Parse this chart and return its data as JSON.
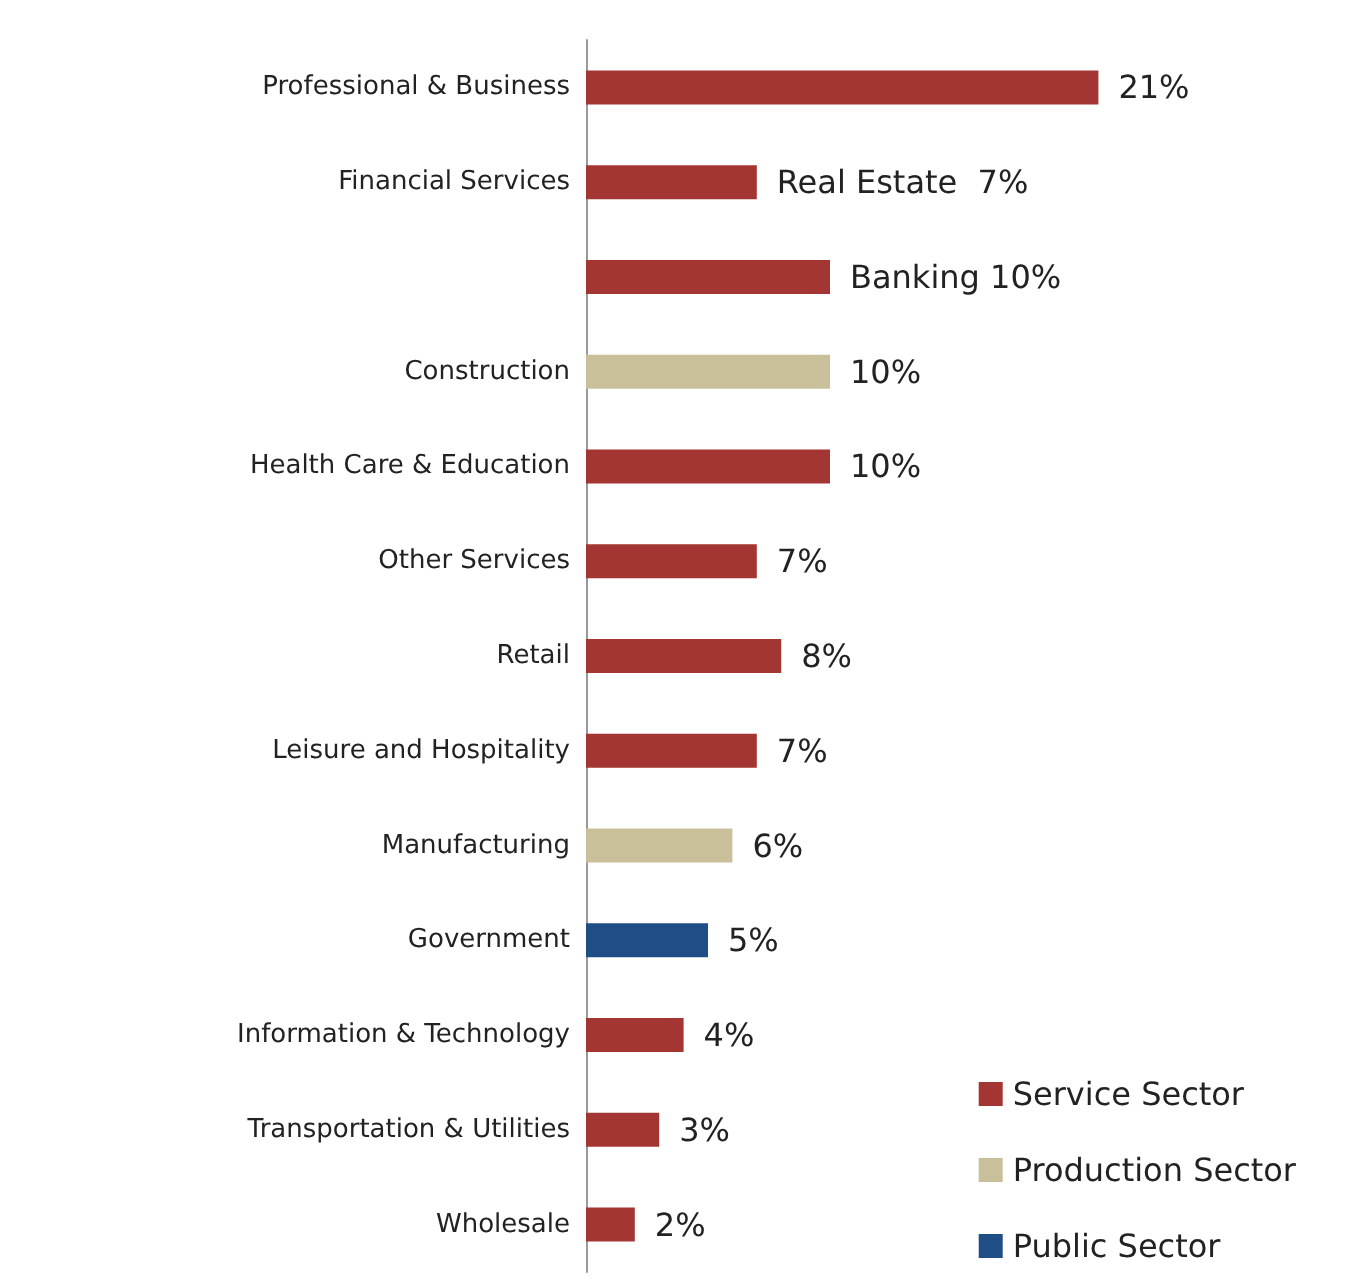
{
  "chart_data": {
    "type": "bar",
    "orientation": "horizontal",
    "categories": [
      "Professional & Business",
      "Financial Services",
      null,
      "Construction",
      "Health Care & Education",
      "Other Services",
      "Retail",
      "Leisure and Hospitality",
      "Manufacturing",
      "Government",
      "Information & Technology",
      "Transportation & Utilities",
      "Wholesale"
    ],
    "series": [
      {
        "name": "Service Sector",
        "color": "#a33532",
        "values": [
          21,
          7,
          10,
          null,
          10,
          7,
          8,
          7,
          null,
          null,
          4,
          3,
          2
        ],
        "value_labels": [
          "21%",
          "Real Estate  7%",
          "Banking 10%",
          null,
          "10%",
          "7%",
          "8%",
          "7%",
          null,
          null,
          "4%",
          "3%",
          "2%"
        ]
      },
      {
        "name": "Production Sector",
        "color": "#c9c09b",
        "values": [
          null,
          null,
          null,
          10,
          null,
          null,
          null,
          null,
          6,
          null,
          null,
          null,
          null
        ],
        "value_labels": [
          null,
          null,
          null,
          "10%",
          null,
          null,
          null,
          null,
          "6%",
          null,
          null,
          null,
          null
        ]
      },
      {
        "name": "Public Sector",
        "color": "#1f4e86",
        "values": [
          null,
          null,
          null,
          null,
          null,
          null,
          null,
          null,
          null,
          5,
          null,
          null,
          null
        ],
        "value_labels": [
          null,
          null,
          null,
          null,
          null,
          null,
          null,
          null,
          null,
          "5%",
          null,
          null,
          null
        ]
      }
    ],
    "legend": "bottom right"
  }
}
